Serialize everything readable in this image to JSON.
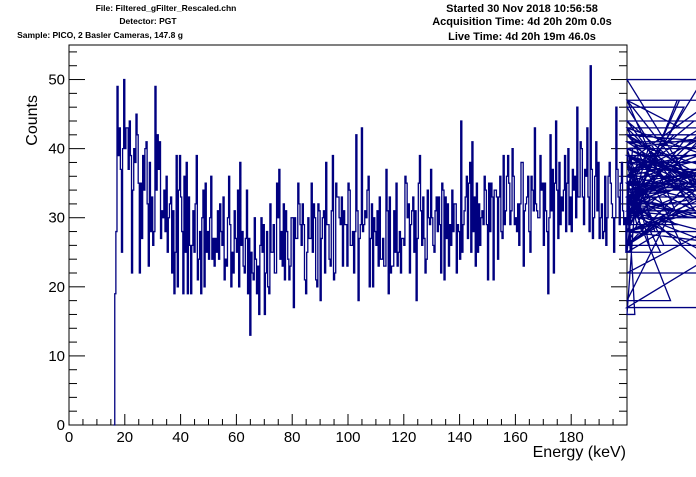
{
  "header": {
    "file": "File: Filtered_gFilter_Rescaled.chn",
    "detector": "Detector: PGT",
    "sample": "Sample: PICO, 2 Basler Cameras, 147.8 g",
    "started": "Started 30 Nov 2018 10:56:58",
    "acquisition_time": "Acquisition Time: 4d 20h 20m 0.0s",
    "live_time": "Live Time: 4d 20h 19m 46.0s"
  },
  "chart_data": {
    "type": "line",
    "drawstyle": "histogram-steps",
    "title": "",
    "xlabel": "Energy (keV)",
    "ylabel": "Counts",
    "xlim": [
      0,
      200
    ],
    "ylim": [
      0,
      55
    ],
    "xticks": [
      "0",
      "20",
      "40",
      "60",
      "80",
      "100",
      "120",
      "140",
      "160",
      "180"
    ],
    "yticks": [
      "0",
      "10",
      "20",
      "30",
      "40",
      "50"
    ],
    "line_color": "#000080",
    "grid": false,
    "legend": "none",
    "bin_width_keV": 0.4,
    "x_start_keV": 16.0,
    "values": [
      0,
      19,
      28,
      49,
      39,
      43,
      37,
      25,
      40,
      50,
      40,
      43,
      43,
      37,
      44,
      39,
      22,
      34,
      40,
      38,
      45,
      42,
      35,
      22,
      35,
      27,
      39,
      34,
      40,
      41,
      32,
      23,
      38,
      28,
      33,
      26,
      28,
      49,
      34,
      42,
      37,
      41,
      27,
      31,
      30,
      34,
      28,
      36,
      25,
      30,
      32,
      33,
      22,
      31,
      19,
      25,
      39,
      20,
      34,
      39,
      33,
      28,
      19,
      36,
      25,
      38,
      19,
      33,
      26,
      19,
      26,
      31,
      25,
      32,
      39,
      21,
      24,
      28,
      19,
      30,
      34,
      20,
      35,
      25,
      28,
      24,
      30,
      36,
      24,
      27,
      23,
      27,
      25,
      31,
      24,
      32,
      28,
      26,
      33,
      21,
      24,
      23,
      30,
      36,
      29,
      20,
      25,
      22,
      31,
      27,
      25,
      34,
      20,
      38,
      26,
      28,
      23,
      22,
      27,
      34,
      19,
      27,
      13,
      25,
      22,
      21,
      30,
      24,
      19,
      23,
      16,
      26,
      30,
      25,
      29,
      16,
      22,
      28,
      20,
      19,
      32,
      25,
      25,
      29,
      22,
      22,
      35,
      30,
      37,
      24,
      28,
      23,
      32,
      21,
      31,
      28,
      24,
      21,
      23,
      30,
      30,
      17,
      30,
      27,
      27,
      35,
      32,
      29,
      26,
      32,
      29,
      21,
      19,
      25,
      30,
      27,
      27,
      35,
      25,
      32,
      30,
      21,
      20,
      32,
      31,
      18,
      27,
      30,
      31,
      22,
      38,
      29,
      29,
      24,
      23,
      31,
      39,
      21,
      22,
      35,
      33,
      33,
      30,
      29,
      33,
      23,
      31,
      29,
      29,
      23,
      35,
      34,
      26,
      26,
      28,
      22,
      28,
      42,
      31,
      18,
      27,
      29,
      43,
      28,
      29,
      31,
      30,
      34,
      36,
      20,
      27,
      32,
      20,
      30,
      28,
      26,
      31,
      23,
      33,
      24,
      24,
      27,
      23,
      23,
      37,
      31,
      19,
      33,
      22,
      23,
      23,
      31,
      25,
      35,
      23,
      25,
      28,
      22,
      27,
      27,
      26,
      36,
      35,
      30,
      32,
      22,
      29,
      31,
      33,
      25,
      31,
      18,
      27,
      35,
      39,
      31,
      26,
      33,
      27,
      22,
      24,
      34,
      30,
      29,
      37,
      30,
      26,
      25,
      31,
      33,
      28,
      33,
      29,
      22,
      35,
      34,
      21,
      33,
      27,
      32,
      23,
      29,
      26,
      34,
      28,
      32,
      32,
      22,
      29,
      28,
      24,
      44,
      25,
      29,
      31,
      33,
      36,
      27,
      35,
      38,
      25,
      41,
      28,
      33,
      23,
      35,
      25,
      32,
      26,
      30,
      31,
      29,
      36,
      34,
      29,
      21,
      35,
      28,
      35,
      33,
      21,
      34,
      34,
      33,
      24,
      33,
      36,
      28,
      27,
      39,
      29,
      31,
      36,
      39,
      35,
      29,
      31,
      40,
      36,
      29,
      30,
      28,
      32,
      26,
      32,
      38,
      38,
      23,
      31,
      32,
      33,
      36,
      28,
      25,
      36,
      34,
      31,
      43,
      32,
      31,
      30,
      30,
      39,
      34,
      35,
      26,
      35,
      31,
      28,
      19,
      30,
      42,
      31,
      37,
      22,
      35,
      44,
      34,
      27,
      38,
      29,
      33,
      31,
      34,
      39,
      28,
      35,
      40,
      29,
      33,
      28,
      37,
      34,
      36,
      30,
      46,
      33,
      33,
      41,
      40,
      33,
      29,
      37,
      36,
      43,
      33,
      28,
      52,
      37,
      27,
      30,
      36,
      41,
      31,
      38,
      27,
      30,
      32,
      27,
      28,
      36,
      26,
      30,
      36,
      38,
      35,
      32,
      30,
      25,
      30,
      46,
      37,
      33,
      29,
      35,
      38,
      31,
      29,
      30,
      25,
      33,
      35,
      33,
      25,
      31,
      40,
      36,
      16,
      34,
      29,
      39,
      31,
      38,
      28,
      33,
      30,
      30,
      35,
      29,
      40,
      26,
      33,
      30,
      36,
      40,
      28,
      29,
      33,
      32,
      35,
      25,
      28,
      38,
      26,
      30,
      30,
      32,
      34,
      34,
      18,
      31,
      35,
      42,
      34,
      29,
      47,
      30,
      47,
      43,
      26,
      31,
      46,
      33,
      35,
      30,
      42,
      37,
      39,
      33,
      36,
      44,
      31,
      30,
      41,
      40,
      36,
      43,
      32,
      50,
      32,
      43,
      39,
      36,
      42,
      41,
      33,
      38,
      47,
      31,
      26,
      39,
      33,
      35,
      37,
      34,
      37,
      40,
      42,
      32,
      30,
      36,
      33,
      44,
      31,
      38,
      35,
      41,
      36,
      28,
      26,
      39,
      34,
      35,
      31,
      22,
      31,
      34,
      39,
      33,
      28,
      33,
      17,
      28,
      36,
      40,
      31,
      26,
      39,
      28,
      35,
      33,
      40,
      31
    ]
  }
}
